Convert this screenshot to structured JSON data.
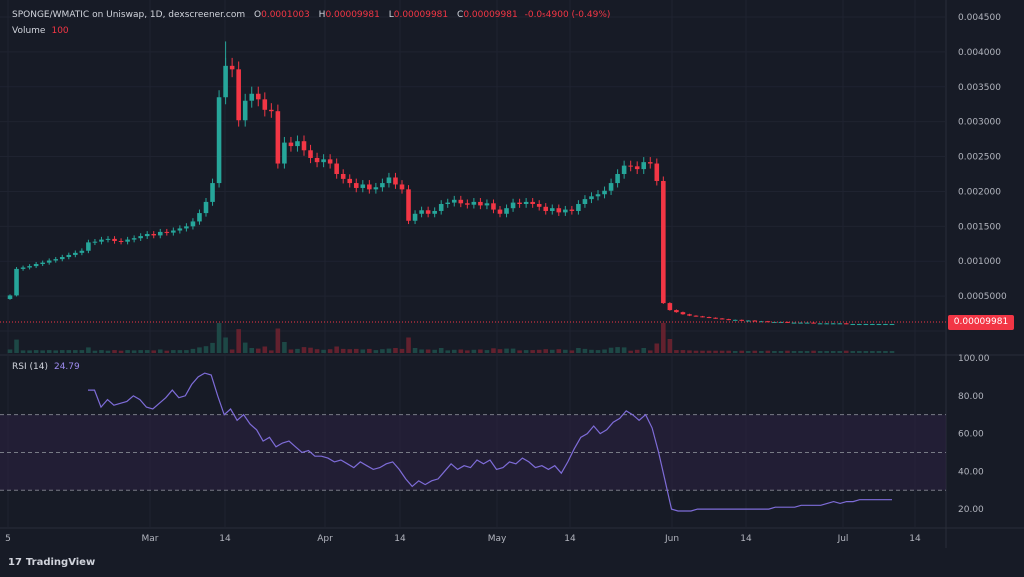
{
  "header": {
    "title": "SPONGE/WMATIC on Uniswap, 1D, dexscreener.com",
    "open_label": "O",
    "open": "0.0001003",
    "high_label": "H",
    "high": "0.00009981",
    "low_label": "L",
    "low": "0.00009981",
    "close_label": "C",
    "close": "0.00009981",
    "change": "-0.0₅4900 (-0.49%)"
  },
  "volume": {
    "label": "Volume",
    "value": "100"
  },
  "rsi": {
    "label": "RSI (14)",
    "value": "24.79"
  },
  "current_price": "0.00009981",
  "footer": {
    "brand": "TradingView",
    "logo": "17"
  },
  "colors": {
    "up": "#26a69a",
    "down": "#f23645",
    "rsi_line": "#7e6cd8",
    "background": "#171b26"
  },
  "chart_data": [
    {
      "type": "candlestick",
      "title": "SPONGE/WMATIC on Uniswap, 1D, dexscreener.com",
      "x_tick_labels": [
        "5",
        "Mar",
        "14",
        "Apr",
        "14",
        "May",
        "14",
        "Jun",
        "14",
        "Jul",
        "14"
      ],
      "y_tick_labels": [
        "0.004500",
        "0.004000",
        "0.003500",
        "0.003000",
        "0.002500",
        "0.002000",
        "0.001500",
        "0.001000",
        "0.0005000",
        "0.000000"
      ],
      "ylim": [
        0,
        0.0045
      ],
      "grid": true,
      "close_series": [
        0.00051,
        0.00089,
        0.00091,
        0.00093,
        0.00096,
        0.00098,
        0.00101,
        0.00103,
        0.00106,
        0.00109,
        0.00112,
        0.00115,
        0.00127,
        0.00128,
        0.00131,
        0.00132,
        0.00129,
        0.00128,
        0.00131,
        0.00133,
        0.00136,
        0.00139,
        0.00137,
        0.00142,
        0.00141,
        0.00144,
        0.00147,
        0.0015,
        0.00157,
        0.00169,
        0.00185,
        0.00212,
        0.00335,
        0.0038,
        0.00375,
        0.00302,
        0.0033,
        0.0034,
        0.00332,
        0.00317,
        0.00315,
        0.0024,
        0.0027,
        0.00265,
        0.00272,
        0.00259,
        0.00248,
        0.00242,
        0.00246,
        0.0024,
        0.00225,
        0.00218,
        0.00212,
        0.00205,
        0.0021,
        0.00203,
        0.00206,
        0.00212,
        0.0022,
        0.0021,
        0.00203,
        0.00158,
        0.00168,
        0.00173,
        0.00168,
        0.00172,
        0.00182,
        0.00184,
        0.00188,
        0.00183,
        0.00181,
        0.00185,
        0.0018,
        0.00183,
        0.00174,
        0.00168,
        0.00176,
        0.00184,
        0.00182,
        0.00185,
        0.00182,
        0.00178,
        0.00172,
        0.00176,
        0.0017,
        0.00174,
        0.00172,
        0.00182,
        0.00189,
        0.00193,
        0.00196,
        0.00201,
        0.00212,
        0.00225,
        0.00237,
        0.00236,
        0.00232,
        0.00242,
        0.0024,
        0.00215,
        0.0004,
        0.0003,
        0.00027,
        0.00024,
        0.00022,
        0.00021,
        0.0002,
        0.00019,
        0.00018,
        0.00017,
        0.00016,
        0.00016,
        0.00015,
        0.00015,
        0.00014,
        0.00014,
        0.00013,
        0.00013,
        0.00013,
        0.00012,
        0.00012,
        0.00012,
        0.00012,
        0.00011,
        0.00011,
        0.00011,
        0.00011,
        0.00011,
        0.0001,
        0.0001,
        0.0001,
        0.0001,
        0.0001,
        0.0001,
        0.0001,
        0.0001
      ],
      "peak_high": 0.00415
    },
    {
      "type": "line",
      "title": "RSI (14)",
      "x_tick_labels": [
        "5",
        "Mar",
        "14",
        "Apr",
        "14",
        "May",
        "14",
        "Jun",
        "14",
        "Jul",
        "14"
      ],
      "y_tick_labels": [
        "100.00",
        "80.00",
        "60.00",
        "40.00",
        "20.00"
      ],
      "ylim": [
        10,
        100
      ],
      "bands": [
        30,
        50,
        70
      ],
      "values": [
        83,
        83,
        74,
        78,
        75,
        76,
        77,
        80,
        78,
        74,
        73,
        76,
        79,
        83,
        79,
        80,
        86,
        90,
        92,
        91,
        80,
        70,
        73,
        67,
        70,
        65,
        62,
        56,
        58,
        53,
        55,
        56,
        53,
        50,
        51,
        48,
        48,
        47,
        45,
        46,
        44,
        42,
        45,
        43,
        41,
        42,
        44,
        45,
        41,
        36,
        32,
        35,
        33,
        35,
        36,
        40,
        44,
        41,
        43,
        42,
        46,
        44,
        46,
        41,
        42,
        45,
        44,
        47,
        45,
        42,
        43,
        41,
        43,
        39,
        45,
        52,
        58,
        60,
        64,
        60,
        62,
        66,
        68,
        72,
        70,
        67,
        70,
        63,
        50,
        35,
        20,
        19,
        19,
        19,
        20,
        20,
        20,
        20,
        20,
        20,
        20,
        20,
        20,
        20,
        20,
        20,
        21,
        21,
        21,
        21,
        22,
        22,
        22,
        22,
        23,
        24,
        23,
        24,
        24,
        25,
        25,
        25,
        25,
        25,
        25
      ]
    }
  ]
}
